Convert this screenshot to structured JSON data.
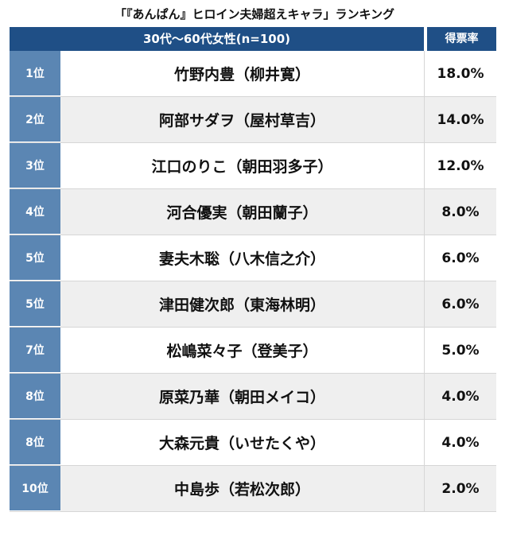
{
  "chart_data": {
    "type": "table",
    "title": "「『あんぱん』ヒロイン夫婦超えキャラ」ランキング",
    "header": {
      "group": "30代〜60代女性(n=100)",
      "rate": "得票率"
    },
    "rows": [
      {
        "rank": "1位",
        "name": "竹野内豊（柳井寛）",
        "rate": "18.0%"
      },
      {
        "rank": "2位",
        "name": "阿部サダヲ（屋村草吉）",
        "rate": "14.0%"
      },
      {
        "rank": "3位",
        "name": "江口のりこ（朝田羽多子）",
        "rate": "12.0%"
      },
      {
        "rank": "4位",
        "name": "河合優実（朝田蘭子）",
        "rate": "8.0%"
      },
      {
        "rank": "5位",
        "name": "妻夫木聡（八木信之介）",
        "rate": "6.0%"
      },
      {
        "rank": "5位",
        "name": "津田健次郎（東海林明）",
        "rate": "6.0%"
      },
      {
        "rank": "7位",
        "name": "松嶋菜々子（登美子）",
        "rate": "5.0%"
      },
      {
        "rank": "8位",
        "name": "原菜乃華（朝田メイコ）",
        "rate": "4.0%"
      },
      {
        "rank": "8位",
        "name": "大森元貴（いせたくや）",
        "rate": "4.0%"
      },
      {
        "rank": "10位",
        "name": "中島歩（若松次郎）",
        "rate": "2.0%"
      }
    ]
  },
  "colors": {
    "header": "#1f4f86",
    "rank_cell": "#5b86b3",
    "alt_row": "#efefef"
  }
}
